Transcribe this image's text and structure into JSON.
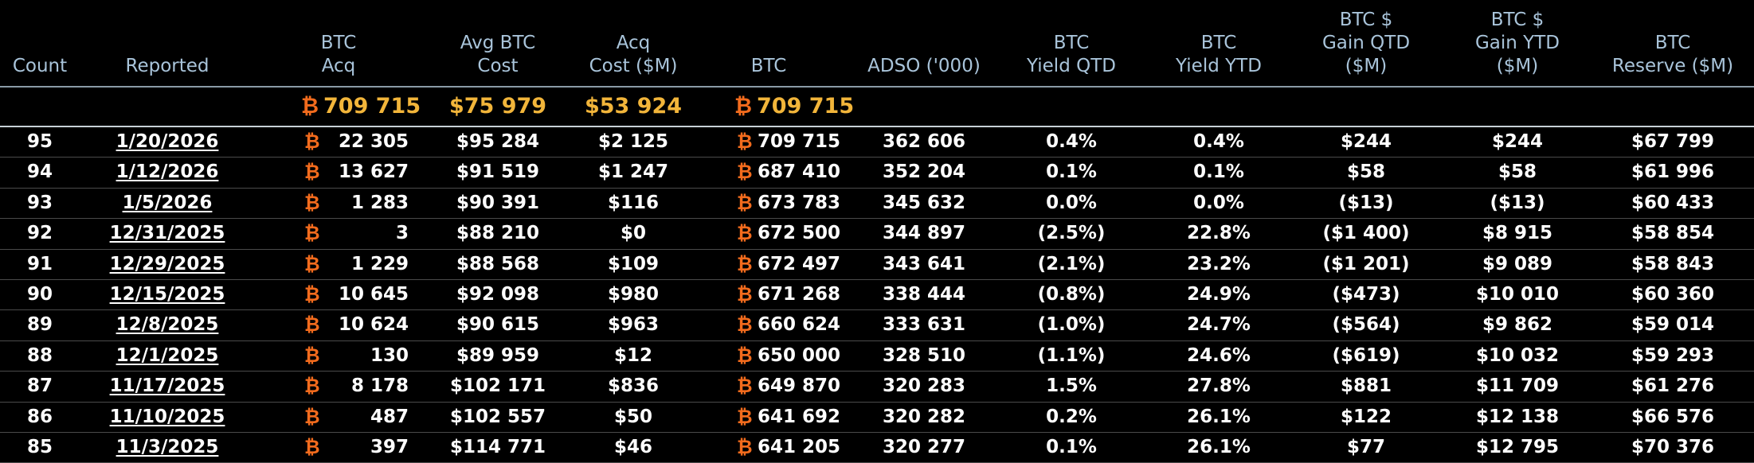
{
  "colors": {
    "background": "#000000",
    "header_text": "#a9c4da",
    "totals_text": "#f2b53a",
    "btc_symbol": "#f26b1d",
    "row_text": "#ffffff"
  },
  "btc_symbol": "₿",
  "headers": {
    "count": [
      "Count"
    ],
    "reported": [
      "Reported"
    ],
    "btc_acq": [
      "BTC",
      "Acq"
    ],
    "avg_btc_cost": [
      "Avg BTC",
      "Cost"
    ],
    "acq_cost": [
      "Acq",
      "Cost ($M)"
    ],
    "btc": [
      "BTC"
    ],
    "adso": [
      "ADSO ('000)"
    ],
    "btc_yield_qtd": [
      "BTC",
      "Yield QTD"
    ],
    "btc_yield_ytd": [
      "BTC",
      "Yield YTD"
    ],
    "btc_gain_qtd": [
      "BTC $",
      "Gain QTD",
      "($M)"
    ],
    "btc_gain_ytd": [
      "BTC $",
      "Gain YTD",
      "($M)"
    ],
    "btc_reserve": [
      "BTC",
      "Reserve ($M)"
    ]
  },
  "totals": {
    "btc_acq": "709 715",
    "avg_btc_cost": "$75 979",
    "acq_cost": "$53 924",
    "btc": "709 715"
  },
  "rows": [
    {
      "count": "95",
      "reported": "1/20/2026",
      "btc_acq": "22 305",
      "avg_cost": "$95 284",
      "acq_cost": "$2 125",
      "btc": "709 715",
      "adso": "362 606",
      "yield_qtd": "0.4%",
      "yield_ytd": "0.4%",
      "gain_qtd": "$244",
      "gain_ytd": "$244",
      "reserve": "$67 799"
    },
    {
      "count": "94",
      "reported": "1/12/2026",
      "btc_acq": "13 627",
      "avg_cost": "$91 519",
      "acq_cost": "$1 247",
      "btc": "687 410",
      "adso": "352 204",
      "yield_qtd": "0.1%",
      "yield_ytd": "0.1%",
      "gain_qtd": "$58",
      "gain_ytd": "$58",
      "reserve": "$61 996"
    },
    {
      "count": "93",
      "reported": "1/5/2026",
      "btc_acq": "1 283",
      "avg_cost": "$90 391",
      "acq_cost": "$116",
      "btc": "673 783",
      "adso": "345 632",
      "yield_qtd": "0.0%",
      "yield_ytd": "0.0%",
      "gain_qtd": "($13)",
      "gain_ytd": "($13)",
      "reserve": "$60 433"
    },
    {
      "count": "92",
      "reported": "12/31/2025",
      "btc_acq": "3",
      "avg_cost": "$88 210",
      "acq_cost": "$0",
      "btc": "672 500",
      "adso": "344 897",
      "yield_qtd": "(2.5%)",
      "yield_ytd": "22.8%",
      "gain_qtd": "($1 400)",
      "gain_ytd": "$8 915",
      "reserve": "$58 854"
    },
    {
      "count": "91",
      "reported": "12/29/2025",
      "btc_acq": "1 229",
      "avg_cost": "$88 568",
      "acq_cost": "$109",
      "btc": "672 497",
      "adso": "343 641",
      "yield_qtd": "(2.1%)",
      "yield_ytd": "23.2%",
      "gain_qtd": "($1 201)",
      "gain_ytd": "$9 089",
      "reserve": "$58 843"
    },
    {
      "count": "90",
      "reported": "12/15/2025",
      "btc_acq": "10 645",
      "avg_cost": "$92 098",
      "acq_cost": "$980",
      "btc": "671 268",
      "adso": "338 444",
      "yield_qtd": "(0.8%)",
      "yield_ytd": "24.9%",
      "gain_qtd": "($473)",
      "gain_ytd": "$10 010",
      "reserve": "$60 360"
    },
    {
      "count": "89",
      "reported": "12/8/2025",
      "btc_acq": "10 624",
      "avg_cost": "$90 615",
      "acq_cost": "$963",
      "btc": "660 624",
      "adso": "333 631",
      "yield_qtd": "(1.0%)",
      "yield_ytd": "24.7%",
      "gain_qtd": "($564)",
      "gain_ytd": "$9 862",
      "reserve": "$59 014"
    },
    {
      "count": "88",
      "reported": "12/1/2025",
      "btc_acq": "130",
      "avg_cost": "$89 959",
      "acq_cost": "$12",
      "btc": "650 000",
      "adso": "328 510",
      "yield_qtd": "(1.1%)",
      "yield_ytd": "24.6%",
      "gain_qtd": "($619)",
      "gain_ytd": "$10 032",
      "reserve": "$59 293"
    },
    {
      "count": "87",
      "reported": "11/17/2025",
      "btc_acq": "8 178",
      "avg_cost": "$102 171",
      "acq_cost": "$836",
      "btc": "649 870",
      "adso": "320 283",
      "yield_qtd": "1.5%",
      "yield_ytd": "27.8%",
      "gain_qtd": "$881",
      "gain_ytd": "$11 709",
      "reserve": "$61 276"
    },
    {
      "count": "86",
      "reported": "11/10/2025",
      "btc_acq": "487",
      "avg_cost": "$102 557",
      "acq_cost": "$50",
      "btc": "641 692",
      "adso": "320 282",
      "yield_qtd": "0.2%",
      "yield_ytd": "26.1%",
      "gain_qtd": "$122",
      "gain_ytd": "$12 138",
      "reserve": "$66 576"
    },
    {
      "count": "85",
      "reported": "11/3/2025",
      "btc_acq": "397",
      "avg_cost": "$114 771",
      "acq_cost": "$46",
      "btc": "641 205",
      "adso": "320 277",
      "yield_qtd": "0.1%",
      "yield_ytd": "26.1%",
      "gain_qtd": "$77",
      "gain_ytd": "$12 795",
      "reserve": "$70 376"
    }
  ]
}
